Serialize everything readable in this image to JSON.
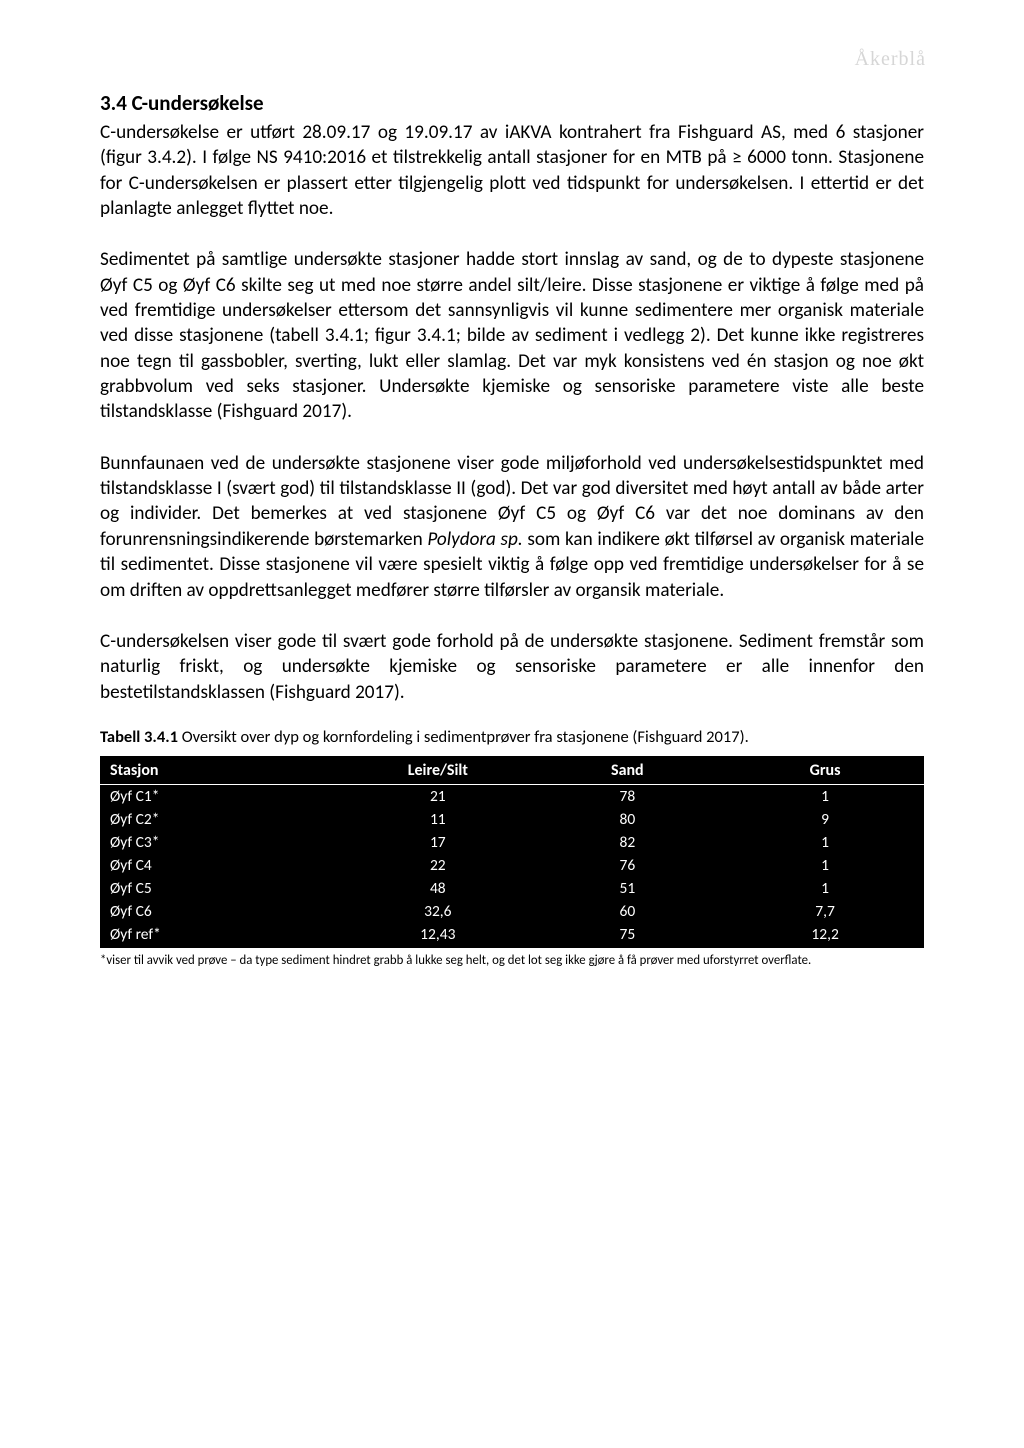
{
  "watermark": "Åkerblå",
  "heading": "3.4 C-undersøkelse",
  "para1": "C-undersøkelse er utført 28.09.17 og 19.09.17 av iAKVA kontrahert fra Fishguard AS, med 6 stasjoner (figur 3.4.2). I følge NS 9410:2016 et tilstrekkelig antall stasjoner for en MTB på ≥ 6000 tonn. Stasjonene for C-undersøkelsen er plassert etter tilgjengelig plott ved tidspunkt for undersøkelsen. I ettertid er det planlagte anlegget flyttet noe.",
  "para2": "Sedimentet på samtlige undersøkte stasjoner hadde stort innslag av sand, og de to dypeste stasjonene Øyf C5 og Øyf C6 skilte seg ut med noe større andel silt/leire. Disse stasjonene er viktige å følge med på ved fremtidige undersøkelser ettersom det sannsynligvis vil kunne sedimentere mer organisk materiale ved disse stasjonene (tabell 3.4.1; figur 3.4.1; bilde av sediment i vedlegg 2). Det kunne ikke registreres noe tegn til gassbobler, sverting, lukt eller slamlag. Det var myk konsistens ved én stasjon og noe økt grabbvolum ved seks stasjoner. Undersøkte kjemiske og sensoriske parametere viste alle beste tilstandsklasse (Fishguard 2017).",
  "para3_a": "Bunnfaunaen ved de undersøkte stasjonene viser gode miljøforhold ved undersøkelsestidspunktet med tilstandsklasse I (svært god) til tilstandsklasse II (god). Det var god diversitet med høyt antall av både arter og individer. Det bemerkes at ved stasjonene Øyf C5 og Øyf C6 var det noe dominans av den forunrensningsindikerende børstemarken ",
  "para3_italic": "Polydora sp.",
  "para3_b": " som kan indikere økt tilførsel av organisk materiale til sedimentet. Disse stasjonene vil være spesielt viktig å følge opp ved fremtidige undersøkelser for å se om driften av oppdrettsanlegget medfører større tilførsler av organsik materiale.",
  "para4": "C-undersøkelsen viser gode til svært gode forhold på de undersøkte stasjonene. Sediment fremstår som naturlig friskt, og undersøkte kjemiske og sensoriske parametere er alle innenfor den bestetilstandsklassen (Fishguard 2017).",
  "caption_bold": "Tabell 3.4.1",
  "caption_rest": " Oversikt over dyp og kornfordeling i sedimentprøver fra stasjonene (Fishguard 2017).",
  "table": {
    "columns": [
      "Stasjon",
      "Leire/Silt",
      "Sand",
      "Grus"
    ],
    "rows": [
      [
        "Øyf C1*",
        "21",
        "78",
        "1"
      ],
      [
        "Øyf C2*",
        "11",
        "80",
        "9"
      ],
      [
        "Øyf C3*",
        "17",
        "82",
        "1"
      ],
      [
        "Øyf C4",
        "22",
        "76",
        "1"
      ],
      [
        "Øyf C5",
        "48",
        "51",
        "1"
      ],
      [
        "Øyf C6",
        "32,6",
        "60",
        "7,7"
      ],
      [
        "Øyf ref*",
        "12,43",
        "75",
        "12,2"
      ]
    ],
    "header_bg": "#000000",
    "text_color": "#ffffff",
    "border_color": "#ffffff",
    "font_size_header": 16,
    "font_size_cell": 15.5
  },
  "footnote": "*viser til avvik ved prøve – da type sediment hindret grabb å lukke seg helt, og det lot seg ikke gjøre å få prøver med uforstyrret overflate."
}
